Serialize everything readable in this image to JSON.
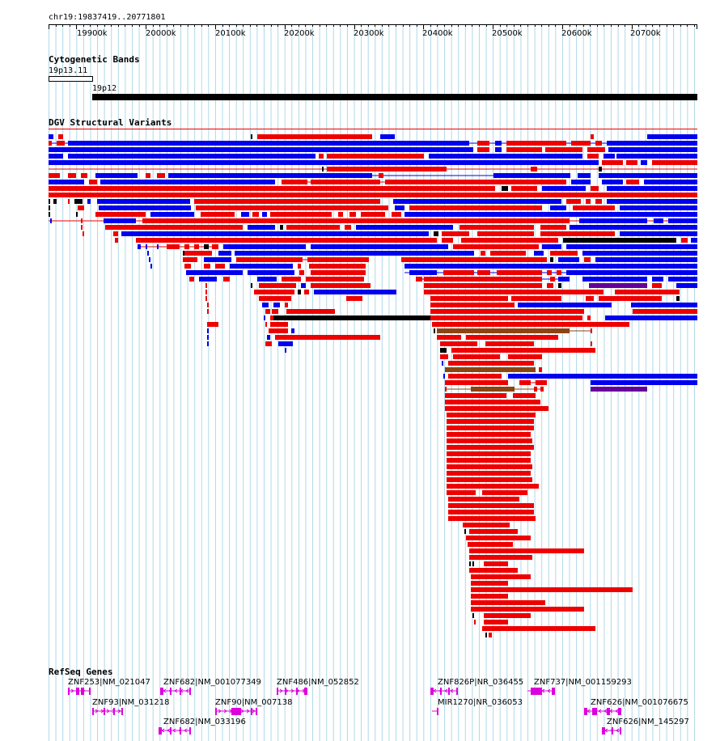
{
  "location": "chr19:19837419..20771801",
  "ruler": {
    "ticks": [
      "19900k",
      "20000k",
      "20100k",
      "20200k",
      "20300k",
      "20400k",
      "20500k",
      "20600k",
      "20700k"
    ]
  },
  "tracks": {
    "cytoband": {
      "title": "Cytogenetic Bands",
      "band1": "19p13.11",
      "band2": "19p12"
    },
    "dgv": {
      "title": "DGV Structural Variants"
    },
    "refseq": {
      "title": "RefSeq Genes"
    }
  },
  "genes": [
    {
      "label": "ZNF253|NM_021047",
      "strand": "+"
    },
    {
      "label": "ZNF682|NM_001077349",
      "strand": "-"
    },
    {
      "label": "ZNF486|NM_052852",
      "strand": "+"
    },
    {
      "label": "ZNF826P|NR_036455",
      "strand": "-"
    },
    {
      "label": "ZNF737|NM_001159293",
      "strand": "-"
    },
    {
      "label": "ZNF93|NM_031218",
      "strand": "+"
    },
    {
      "label": "ZNF90|NM_007138",
      "strand": "+"
    },
    {
      "label": "MIR1270|NR_036053",
      "strand": "-"
    },
    {
      "label": "ZNF626|NM_001076675",
      "strand": "-"
    },
    {
      "label": "ZNF682|NM_033196",
      "strand": "-"
    },
    {
      "label": "ZNF626|NM_145297",
      "strand": "-"
    }
  ],
  "colors": {
    "gain": "#ee0000",
    "loss": "#0000ee",
    "complex": "#000000",
    "inversion": "#8b4513",
    "other": "#660099",
    "gene": "#dd00dd",
    "grid": "#b0d8e8"
  }
}
